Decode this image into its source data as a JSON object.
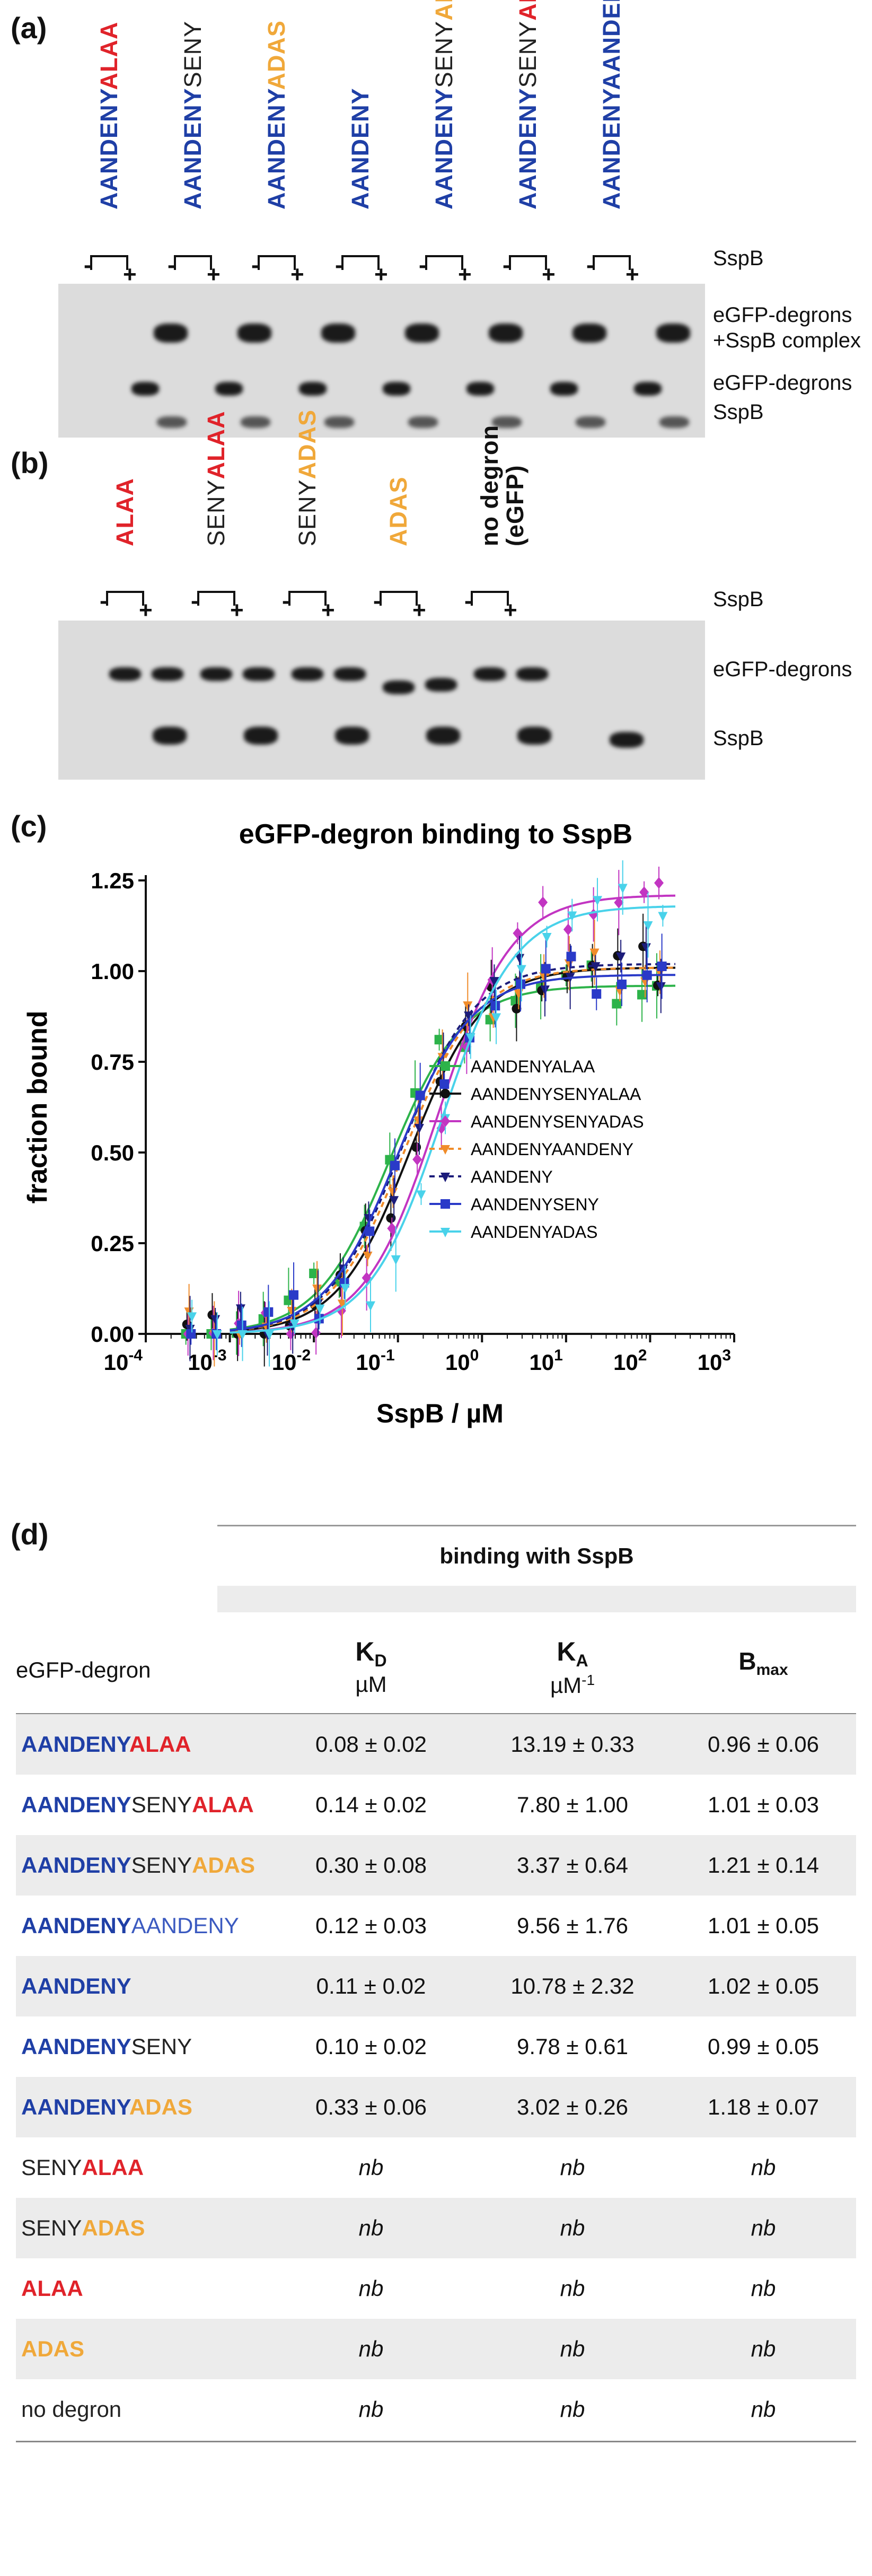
{
  "panels": {
    "a": "(a)",
    "b": "(b)",
    "c": "(c)",
    "d": "(d)"
  },
  "colors": {
    "blue": "#1f3fa6",
    "red": "#e0232a",
    "orange": "#f0a83a"
  },
  "gel_a": {
    "lanes": [
      {
        "parts": [
          {
            "t": "AANDENY",
            "c": "blue"
          },
          {
            "t": "ALAA",
            "c": "red"
          }
        ]
      },
      {
        "parts": [
          {
            "t": "AANDENY",
            "c": "blue"
          },
          {
            "t": "SENY",
            "c": "dark"
          }
        ]
      },
      {
        "parts": [
          {
            "t": "AANDENY",
            "c": "blue"
          },
          {
            "t": "ADAS",
            "c": "orange"
          }
        ]
      },
      {
        "parts": [
          {
            "t": "AANDENY",
            "c": "blue"
          }
        ]
      },
      {
        "parts": [
          {
            "t": "AANDENY",
            "c": "blue"
          },
          {
            "t": "SENY",
            "c": "dark"
          },
          {
            "t": "ADAS",
            "c": "orange"
          }
        ]
      },
      {
        "parts": [
          {
            "t": "AANDENY",
            "c": "blue"
          },
          {
            "t": "SENY",
            "c": "dark"
          },
          {
            "t": "ALAA",
            "c": "red"
          }
        ]
      },
      {
        "parts": [
          {
            "t": "AANDENYAANDENY",
            "c": "blue"
          }
        ]
      }
    ],
    "minus": "-",
    "plus": "+",
    "sspb_row": "SspB",
    "complex_label_1": "eGFP-degrons",
    "complex_label_2": "+SspB complex",
    "degron_label": "eGFP-degrons",
    "sspb_label": "SspB"
  },
  "gel_b": {
    "lanes": [
      {
        "parts": [
          {
            "t": "ALAA",
            "c": "red"
          }
        ]
      },
      {
        "parts": [
          {
            "t": "SENY",
            "c": "dark"
          },
          {
            "t": "ALAA",
            "c": "red"
          }
        ]
      },
      {
        "parts": [
          {
            "t": "SENY",
            "c": "dark"
          },
          {
            "t": "ADAS",
            "c": "orange"
          }
        ]
      },
      {
        "parts": [
          {
            "t": "ADAS",
            "c": "orange"
          }
        ]
      },
      {
        "parts": [
          {
            "t": "no degron",
            "c": "darkbold"
          }
        ]
      }
    ],
    "egfp_note": "(eGFP)",
    "sspb_row": "SspB",
    "degron_label": "eGFP-degrons",
    "sspb_label": "SspB"
  },
  "chart_data": {
    "type": "scatter",
    "title": "eGFP-degron binding to SspB",
    "xlabel": "SspB / µM",
    "ylabel": "fraction bound",
    "xscale": "log",
    "xlim": [
      0.0001,
      1000
    ],
    "ylim": [
      0,
      1.25
    ],
    "xtick_base": "10",
    "xtick_exponents": [
      "-4",
      "-3",
      "-2",
      "-1",
      "0",
      "1",
      "2",
      "3"
    ],
    "yticks": [
      "0.00",
      "0.25",
      "0.50",
      "0.75",
      "1.00",
      "1.25"
    ],
    "series": [
      {
        "name": "AANDENYALAA",
        "color": "#2db34a",
        "marker": "square",
        "dash": false,
        "kd": 0.08,
        "bmax": 0.96
      },
      {
        "name": "AANDENYSENYALAA",
        "color": "#111111",
        "marker": "circle",
        "dash": false,
        "kd": 0.14,
        "bmax": 1.01
      },
      {
        "name": "AANDENYSENYADAS",
        "color": "#c235c2",
        "marker": "diamond",
        "dash": false,
        "kd": 0.3,
        "bmax": 1.21
      },
      {
        "name": "AANDENYAANDENY",
        "color": "#f08c2a",
        "marker": "triangle-down",
        "dash": true,
        "kd": 0.12,
        "bmax": 1.01
      },
      {
        "name": "AANDENY",
        "color": "#1c1c7a",
        "marker": "triangle-down",
        "dash": true,
        "kd": 0.11,
        "bmax": 1.02
      },
      {
        "name": "AANDENYSENY",
        "color": "#2a3ac8",
        "marker": "square",
        "dash": false,
        "kd": 0.1,
        "bmax": 0.99
      },
      {
        "name": "AANDENYADAS",
        "color": "#49d2ea",
        "marker": "triangle-down",
        "dash": false,
        "kd": 0.33,
        "bmax": 1.18
      }
    ],
    "x": [
      0.0003,
      0.0006,
      0.0012,
      0.0025,
      0.005,
      0.01,
      0.02,
      0.04,
      0.08,
      0.16,
      0.31,
      0.62,
      1.25,
      2.5,
      5,
      10,
      20,
      40,
      80,
      120
    ]
  },
  "table": {
    "group_header": "binding with SspB",
    "col_name": "eGFP-degron",
    "col_kd": "K",
    "col_kd_sub": "D",
    "col_kd_unit": "µM",
    "col_ka": "K",
    "col_ka_sub": "A",
    "col_ka_unit": "µM",
    "col_ka_sup": "-1",
    "col_bm": "B",
    "col_bm_sub": "max",
    "rows": [
      {
        "parts": [
          {
            "t": "AANDENY",
            "c": "blue"
          },
          {
            "t": "ALAA",
            "c": "red"
          }
        ],
        "kd": "0.08 ± 0.02",
        "ka": "13.19 ± 0.33",
        "bm": "0.96 ± 0.06"
      },
      {
        "parts": [
          {
            "t": "AANDENY",
            "c": "blue"
          },
          {
            "t": "SENY",
            "c": "dark"
          },
          {
            "t": "ALAA",
            "c": "red"
          }
        ],
        "kd": "0.14 ± 0.02",
        "ka": "7.80 ± 1.00",
        "bm": "1.01 ± 0.03"
      },
      {
        "parts": [
          {
            "t": "AANDENY",
            "c": "blue"
          },
          {
            "t": "SENY",
            "c": "dark"
          },
          {
            "t": "ADAS",
            "c": "orange"
          }
        ],
        "kd": "0.30 ± 0.08",
        "ka": "3.37 ± 0.64",
        "bm": "1.21 ± 0.14"
      },
      {
        "parts": [
          {
            "t": "AANDENY",
            "c": "blue"
          },
          {
            "t": "AANDENY",
            "c": "bluelight"
          }
        ],
        "kd": "0.12 ± 0.03",
        "ka": "9.56 ± 1.76",
        "bm": "1.01 ± 0.05"
      },
      {
        "parts": [
          {
            "t": "AANDENY",
            "c": "blue"
          }
        ],
        "kd": "0.11 ± 0.02",
        "ka": "10.78 ± 2.32",
        "bm": "1.02 ± 0.05"
      },
      {
        "parts": [
          {
            "t": "AANDENY",
            "c": "blue"
          },
          {
            "t": "SENY",
            "c": "dark"
          }
        ],
        "kd": "0.10 ± 0.02",
        "ka": "9.78 ± 0.61",
        "bm": "0.99 ± 0.05"
      },
      {
        "parts": [
          {
            "t": "AANDENY",
            "c": "blue"
          },
          {
            "t": "ADAS",
            "c": "orange"
          }
        ],
        "kd": "0.33 ± 0.06",
        "ka": "3.02 ± 0.26",
        "bm": "1.18 ± 0.07"
      },
      {
        "parts": [
          {
            "t": "SENY",
            "c": "dark"
          },
          {
            "t": "ALAA",
            "c": "red"
          }
        ],
        "kd": "nb",
        "ka": "nb",
        "bm": "nb"
      },
      {
        "parts": [
          {
            "t": "SENY",
            "c": "dark"
          },
          {
            "t": "ADAS",
            "c": "orange"
          }
        ],
        "kd": "nb",
        "ka": "nb",
        "bm": "nb"
      },
      {
        "parts": [
          {
            "t": "ALAA",
            "c": "red"
          }
        ],
        "kd": "nb",
        "ka": "nb",
        "bm": "nb"
      },
      {
        "parts": [
          {
            "t": "ADAS",
            "c": "orange"
          }
        ],
        "kd": "nb",
        "ka": "nb",
        "bm": "nb"
      },
      {
        "parts": [
          {
            "t": "no degron",
            "c": "dark"
          }
        ],
        "kd": "nb",
        "ka": "nb",
        "bm": "nb"
      }
    ]
  }
}
